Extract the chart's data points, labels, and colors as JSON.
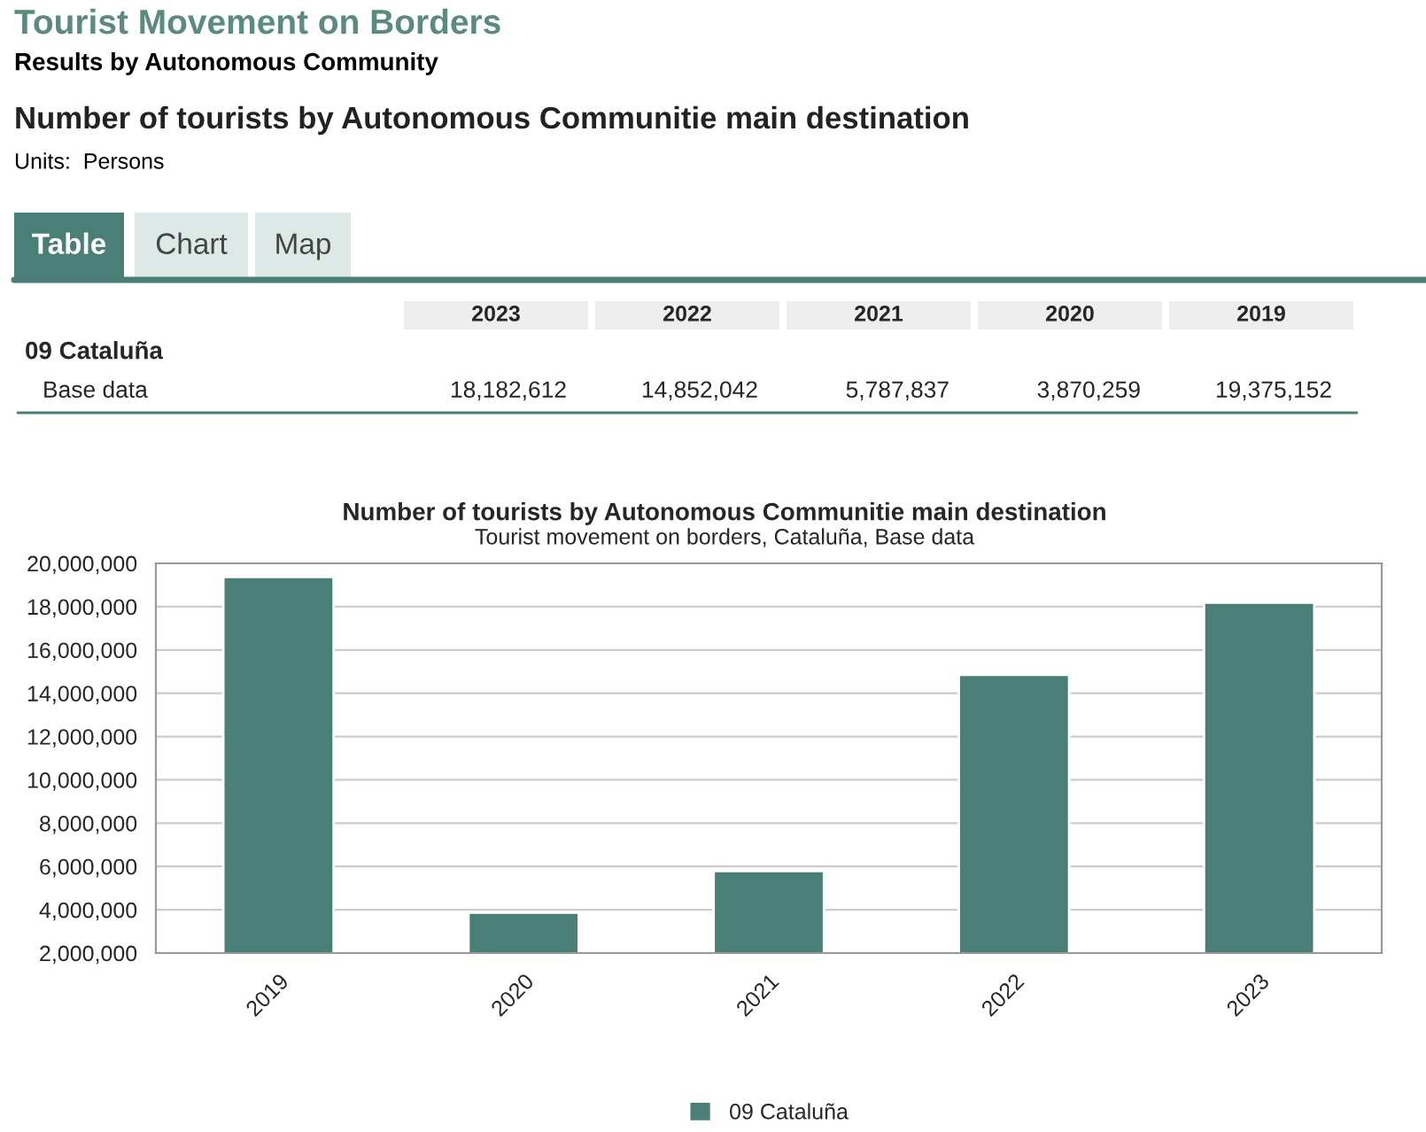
{
  "chart_data": {
    "type": "bar",
    "title": "Number of tourists by Autonomous Communitie main destination",
    "subtitle": "Tourist movement on borders, Cataluña, Base data",
    "annotations": [
      "Tourist Movement on Borders",
      "Results by Autonomous Community",
      "Number of tourists by Autonomous Communitie main destination",
      "Units:  Persons",
      "Table",
      "Chart",
      "Map",
      "Base data",
      "18,182,612",
      "14,852,042",
      "5,787,837",
      "3,870,259",
      "19,375,152"
    ],
    "categories": [
      "2019",
      "2020",
      "2021",
      "2022",
      "2023"
    ],
    "series": [
      {
        "name": "09 Cataluña",
        "color": "#4a7f77",
        "values": [
          19375152,
          3870259,
          5787837,
          14852042,
          18182612
        ]
      }
    ],
    "ylim": [
      2000000,
      20000000
    ],
    "yticks": [
      {
        "value": 2000000,
        "label": "2,000,000"
      },
      {
        "value": 4000000,
        "label": "4,000,000"
      },
      {
        "value": 6000000,
        "label": "6,000,000"
      },
      {
        "value": 8000000,
        "label": "8,000,000"
      },
      {
        "value": 10000000,
        "label": "10,000,000"
      },
      {
        "value": 12000000,
        "label": "12,000,000"
      },
      {
        "value": 14000000,
        "label": "14,000,000"
      },
      {
        "value": 16000000,
        "label": "16,000,000"
      },
      {
        "value": 18000000,
        "label": "18,000,000"
      },
      {
        "value": 20000000,
        "label": "20,000,000"
      }
    ],
    "grid": "y",
    "legend": "bottom"
  }
}
